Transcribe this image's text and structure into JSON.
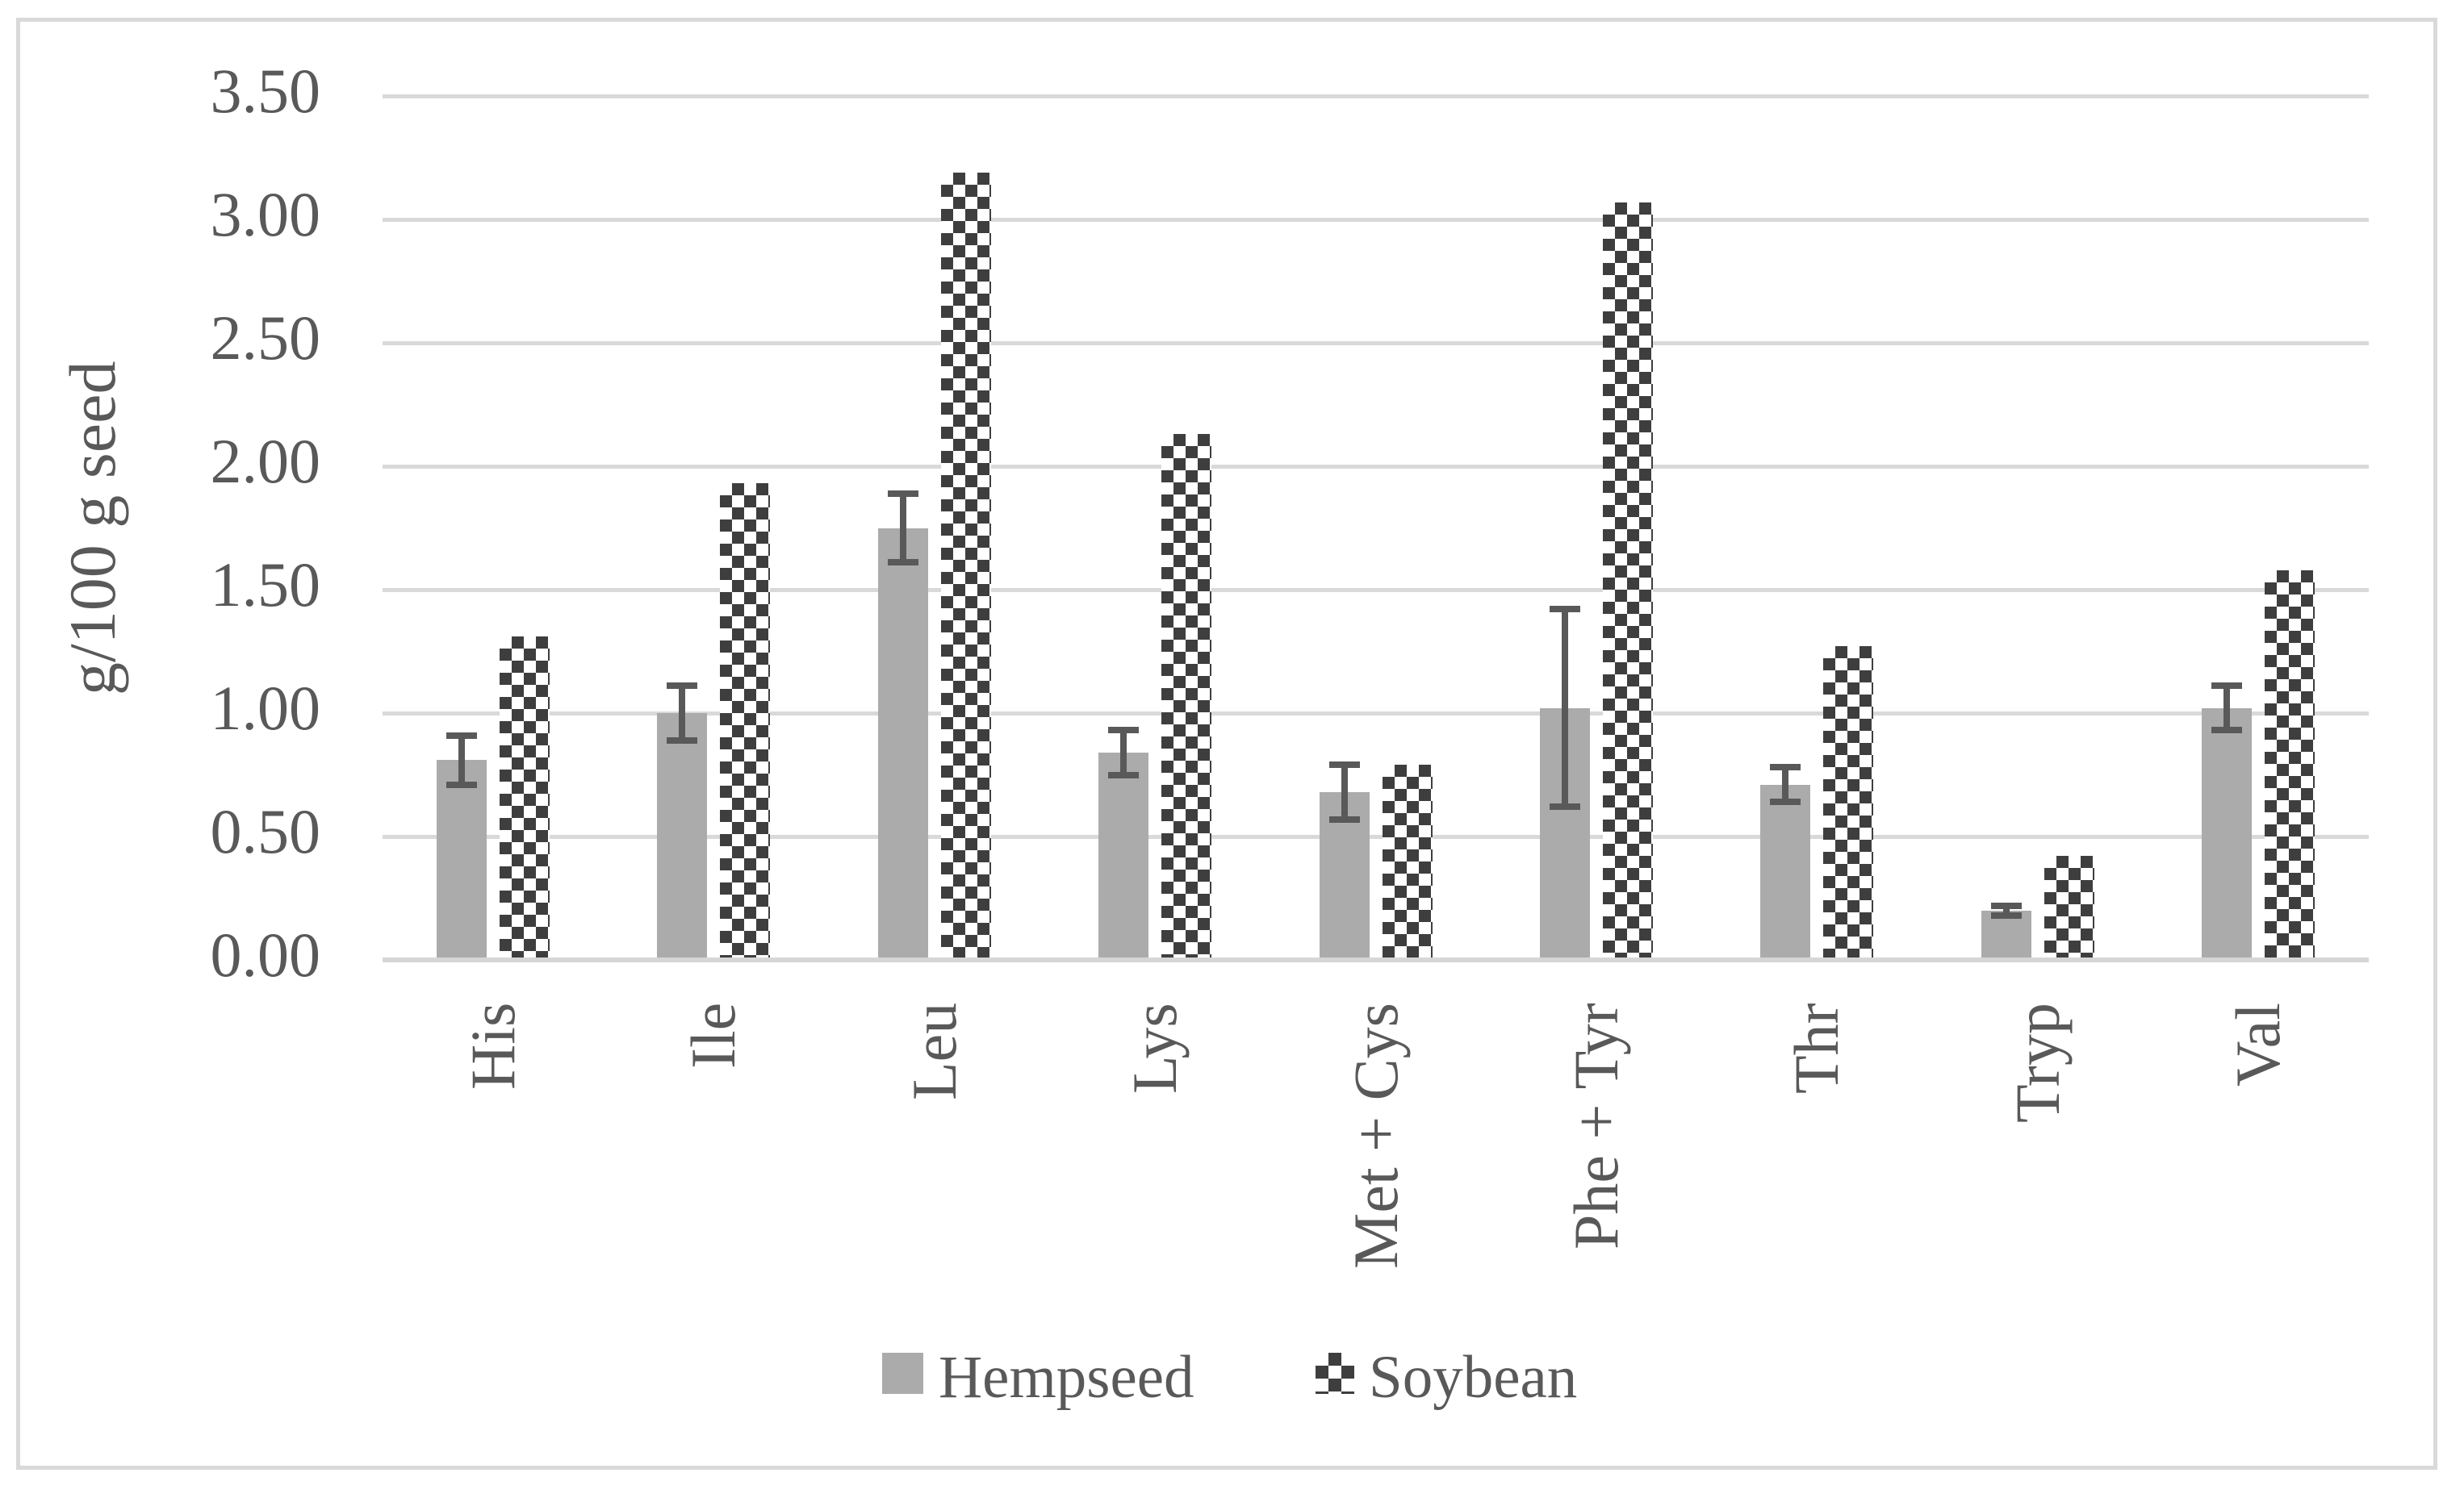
{
  "figure": {
    "background_color": "#FFFFFF",
    "border_color": "#D9D9D9",
    "text_color": "#595959",
    "gridline_color": "#D9D9D9"
  },
  "chart_data": {
    "type": "bar",
    "title": "",
    "xlabel": "",
    "ylabel": "g/100 g seed",
    "ylim": [
      0,
      3.5
    ],
    "ytick_step": 0.5,
    "ytick_labels": [
      "0.00",
      "0.50",
      "1.00",
      "1.50",
      "2.00",
      "2.50",
      "3.00",
      "3.50"
    ],
    "grid": true,
    "legend_position": "bottom",
    "categories": [
      "His",
      "Ile",
      "Leu",
      "Lys",
      "Met + Cys",
      "Phe + Tyr",
      "Thr",
      "Tryp",
      "Val"
    ],
    "series": [
      {
        "name": "Hempseed",
        "pattern": "solid",
        "color": "#ABABAB",
        "values": [
          0.81,
          1.0,
          1.75,
          0.84,
          0.68,
          1.02,
          0.71,
          0.2,
          1.02
        ],
        "error_bars": {
          "color": "#595959",
          "plus_minus": [
            0.1,
            0.11,
            0.14,
            0.09,
            0.11,
            0.4,
            0.07,
            0.02,
            0.09
          ]
        }
      },
      {
        "name": "Soybean",
        "pattern": "checkerboard",
        "pattern_dark_color": "#3E3E3E",
        "pattern_light_color": "#FFFFFF",
        "values": [
          1.31,
          1.93,
          3.19,
          2.13,
          0.79,
          3.07,
          1.27,
          0.42,
          1.58
        ]
      }
    ]
  }
}
